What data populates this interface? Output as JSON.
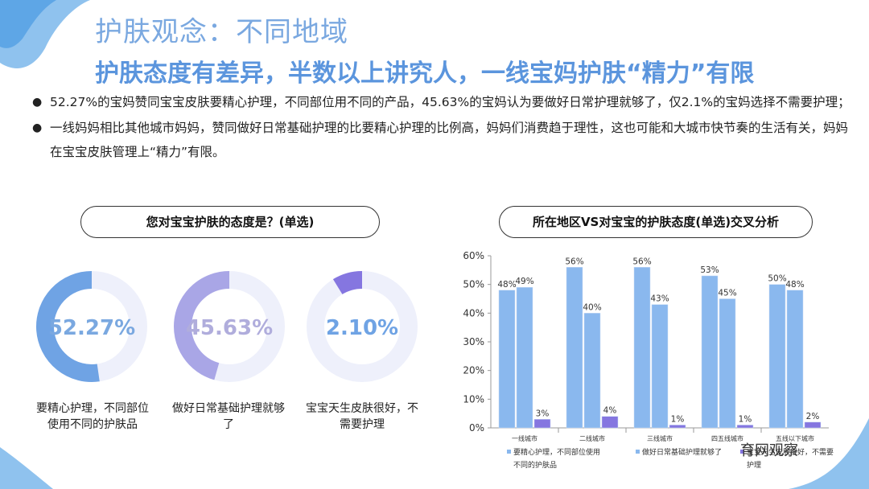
{
  "title": "护肤观念：不同地域",
  "subtitle": "护肤态度有差异，半数以上讲究人，一线宝妈护肤“精力”有限",
  "bullets": [
    "52.27%的宝妈赞同宝宝皮肤要精心护理，不同部位用不同的产品，45.63%的宝妈认为要做好日常护理就够了，仅2.1%的宝妈选择不需要护理；",
    "一线妈妈相比其他城市妈妈，赞同做好日常基础护理的比要精心护理的比例高，妈妈们消费趋于理性，这也可能和大城市快节奏的生活有关，妈妈在宝宝皮肤管理上“精力”有限。"
  ],
  "left_panel": {
    "heading": "您对宝宝护肤的态度是？(单选)",
    "donuts": [
      {
        "value": 52.27,
        "text": "52.27%",
        "label": "要精心护理，不同部位使用不同的护肤品",
        "color": "#6fa3e4",
        "text_color": "#7aa8e0"
      },
      {
        "value": 45.63,
        "text": "45.63%",
        "label": "做好日常基础护理就够了",
        "color": "#a9a6e6",
        "text_color": "#b0addc"
      },
      {
        "value": 2.1,
        "text": "2.10%",
        "label": "宝宝天生皮肤很好，不需要护理",
        "color": "#8576e0",
        "text_color": "#6fa3e4"
      }
    ],
    "track_color": "#eef0fb"
  },
  "right_panel": {
    "heading": "所在地区VS对宝宝的护肤态度(单选)交叉分析"
  },
  "chart_data": {
    "type": "bar",
    "categories": [
      "一线城市",
      "二线城市",
      "三线城市",
      "四五线城市",
      "五线以下城市"
    ],
    "series": [
      {
        "name": "要精心护理，不同部位使用不同的护肤品",
        "values": [
          48,
          56,
          56,
          53,
          50
        ],
        "labels": [
          "48%",
          "56%",
          "56%",
          "53%",
          "50%"
        ],
        "color": "#8ab8ee"
      },
      {
        "name": "做好日常基础护理就够了",
        "values": [
          49,
          40,
          43,
          45,
          48
        ],
        "labels": [
          "49%",
          "40%",
          "43%",
          "45%",
          "48%"
        ],
        "color": "#8ab8ee"
      },
      {
        "name": "宝宝天生皮肤很好，不需要护理",
        "values": [
          3,
          4,
          1,
          1,
          2
        ],
        "labels": [
          "3%",
          "4%",
          "1%",
          "1%",
          "2%"
        ],
        "color": "#8576e0"
      }
    ],
    "yticks": [
      "0%",
      "10%",
      "20%",
      "30%",
      "40%",
      "50%",
      "60%"
    ],
    "ylim": [
      0,
      60
    ],
    "legend": [
      "要精心护理，不同部位使用不同的护肤品",
      "做好日常基础护理就够了",
      "宝宝天生皮肤很好，不需要护理"
    ],
    "legend_position": "bottom"
  },
  "watermark": "育网观察"
}
